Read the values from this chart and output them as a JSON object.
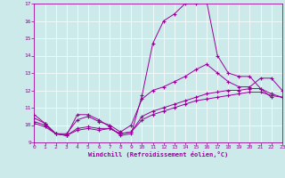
{
  "xlabel": "Windchill (Refroidissement éolien,°C)",
  "xlim": [
    0,
    23
  ],
  "ylim": [
    9,
    17
  ],
  "yticks": [
    9,
    10,
    11,
    12,
    13,
    14,
    15,
    16,
    17
  ],
  "xticks": [
    0,
    1,
    2,
    3,
    4,
    5,
    6,
    7,
    8,
    9,
    10,
    11,
    12,
    13,
    14,
    15,
    16,
    17,
    18,
    19,
    20,
    21,
    22,
    23
  ],
  "bg_color": "#cceaea",
  "line_color": "#990099",
  "series": [
    {
      "x": [
        0,
        1,
        2,
        3,
        4,
        5,
        6,
        7,
        8,
        9,
        10,
        11,
        12,
        13,
        14,
        15,
        16,
        17,
        18,
        19,
        20,
        21,
        22
      ],
      "y": [
        10.6,
        10.1,
        9.5,
        9.4,
        10.6,
        10.6,
        10.3,
        9.9,
        9.4,
        9.5,
        11.7,
        14.7,
        16.0,
        16.4,
        17.0,
        17.0,
        17.1,
        14.0,
        13.0,
        12.8,
        12.8,
        12.1,
        11.6
      ]
    },
    {
      "x": [
        0,
        1,
        2,
        3,
        4,
        5,
        6,
        7,
        8,
        9,
        10,
        11,
        12,
        13,
        14,
        15,
        16,
        17,
        18,
        19,
        20,
        21,
        22,
        23
      ],
      "y": [
        10.4,
        10.1,
        9.5,
        9.5,
        10.3,
        10.5,
        10.2,
        10.0,
        9.6,
        10.0,
        11.5,
        12.0,
        12.2,
        12.5,
        12.8,
        13.2,
        13.5,
        13.0,
        12.5,
        12.2,
        12.2,
        12.7,
        12.7,
        12.0
      ]
    },
    {
      "x": [
        0,
        1,
        2,
        3,
        4,
        5,
        6,
        7,
        8,
        9,
        10,
        11,
        12,
        13,
        14,
        15,
        16,
        17,
        18,
        19,
        20,
        21,
        22,
        23
      ],
      "y": [
        10.2,
        10.0,
        9.5,
        9.4,
        9.8,
        9.9,
        9.8,
        9.8,
        9.5,
        9.6,
        10.5,
        10.8,
        11.0,
        11.2,
        11.4,
        11.6,
        11.8,
        11.9,
        12.0,
        12.0,
        12.1,
        12.1,
        11.8,
        11.6
      ]
    },
    {
      "x": [
        0,
        1,
        2,
        3,
        4,
        5,
        6,
        7,
        8,
        9,
        10,
        11,
        12,
        13,
        14,
        15,
        16,
        17,
        18,
        19,
        20,
        21,
        22,
        23
      ],
      "y": [
        10.1,
        9.9,
        9.5,
        9.4,
        9.7,
        9.8,
        9.7,
        9.8,
        9.5,
        9.6,
        10.3,
        10.6,
        10.8,
        11.0,
        11.2,
        11.4,
        11.5,
        11.6,
        11.7,
        11.8,
        11.9,
        11.9,
        11.7,
        11.6
      ]
    }
  ]
}
